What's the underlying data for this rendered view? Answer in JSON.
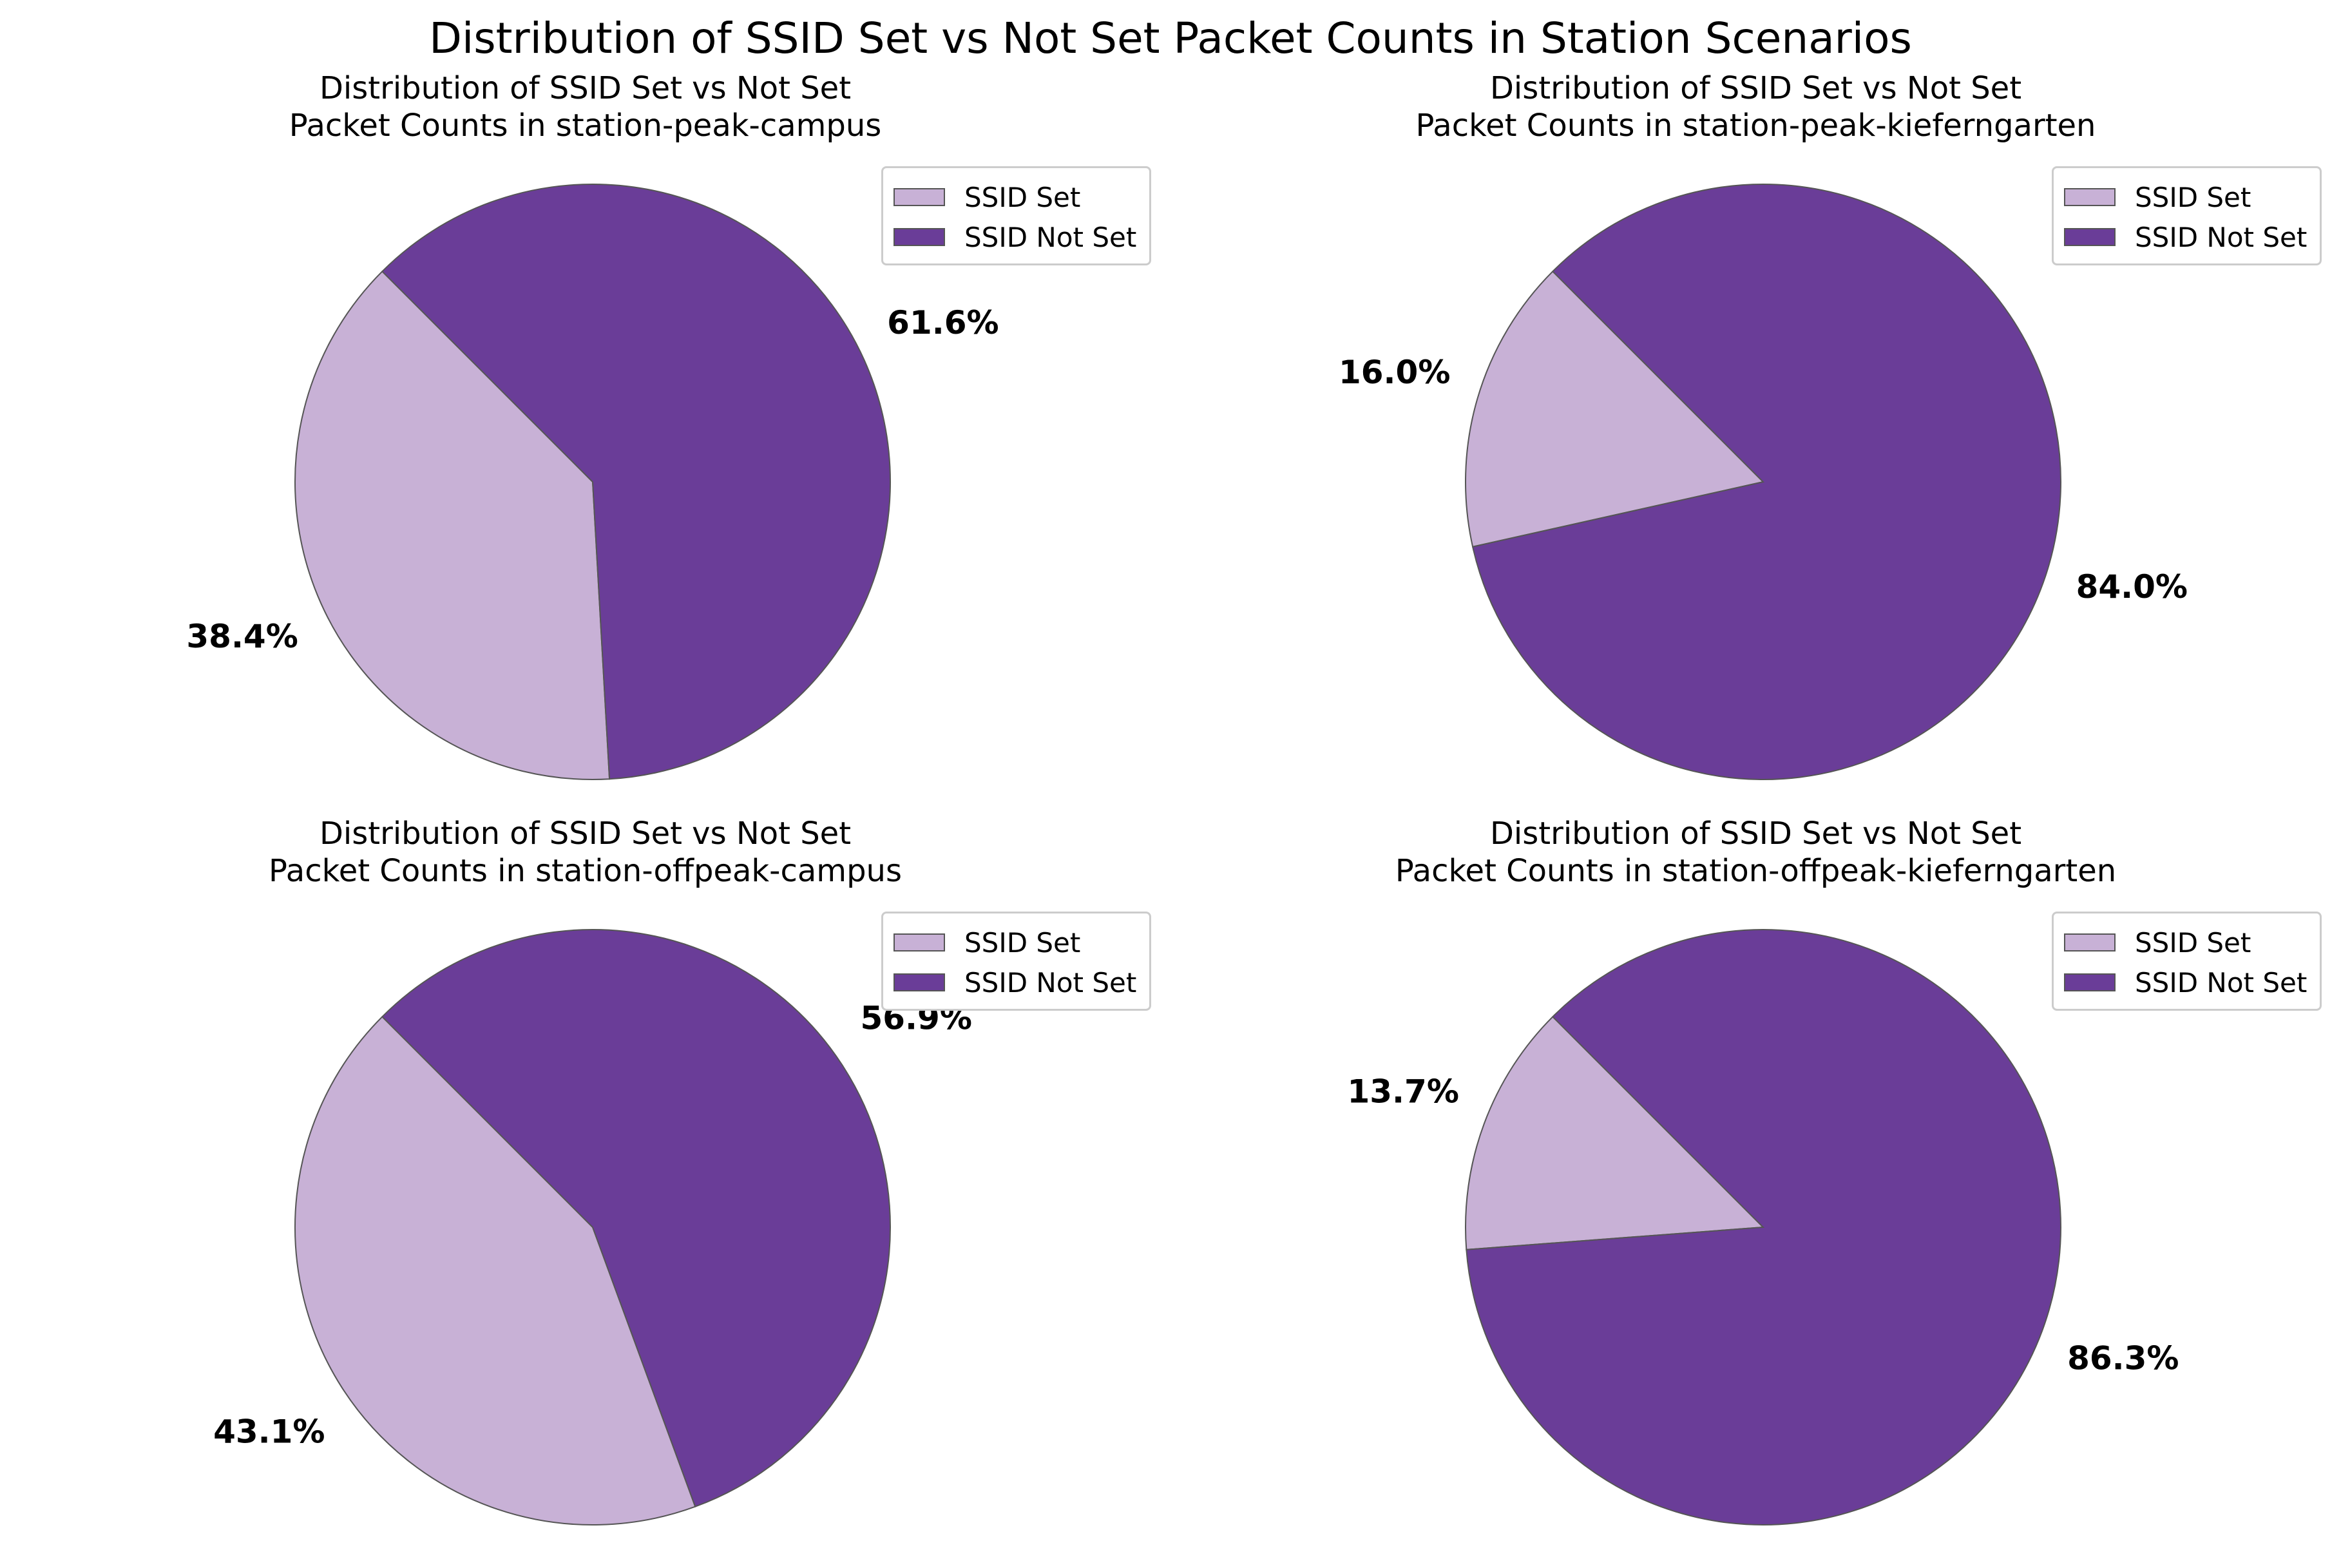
{
  "figure_title": "Distribution of SSID Set vs Not Set Packet Counts in Station Scenarios",
  "colors": {
    "ssid_set": "#c8b1d6",
    "ssid_not_set": "#6a3d98",
    "edge": "#555555"
  },
  "chart_data": [
    {
      "type": "pie",
      "title_line1": "Distribution of SSID Set vs Not Set",
      "title_line2": "Packet Counts in station-peak-campus",
      "labels": [
        "SSID Set",
        "SSID Not Set"
      ],
      "values": [
        38.4,
        61.6
      ],
      "value_labels": [
        "38.4%",
        "61.6%"
      ],
      "start_angle_deg": 135,
      "legend": "top-right"
    },
    {
      "type": "pie",
      "title_line1": "Distribution of SSID Set vs Not Set",
      "title_line2": "Packet Counts in station-peak-kieferngarten",
      "labels": [
        "SSID Set",
        "SSID Not Set"
      ],
      "values": [
        16.0,
        84.0
      ],
      "value_labels": [
        "16.0%",
        "84.0%"
      ],
      "start_angle_deg": 135,
      "legend": "top-right"
    },
    {
      "type": "pie",
      "title_line1": "Distribution of SSID Set vs Not Set",
      "title_line2": "Packet Counts in station-offpeak-campus",
      "labels": [
        "SSID Set",
        "SSID Not Set"
      ],
      "values": [
        43.1,
        56.9
      ],
      "value_labels": [
        "43.1%",
        "56.9%"
      ],
      "start_angle_deg": 135,
      "legend": "top-right"
    },
    {
      "type": "pie",
      "title_line1": "Distribution of SSID Set vs Not Set",
      "title_line2": "Packet Counts in station-offpeak-kieferngarten",
      "labels": [
        "SSID Set",
        "SSID Not Set"
      ],
      "values": [
        13.7,
        86.3
      ],
      "value_labels": [
        "13.7%",
        "86.3%"
      ],
      "start_angle_deg": 135,
      "legend": "top-right"
    }
  ]
}
